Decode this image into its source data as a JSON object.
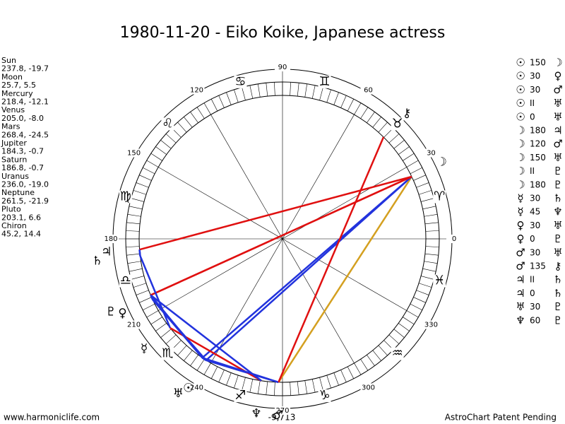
{
  "header": {
    "title": "1980-11-20 - Eiko Koike, Japanese actress"
  },
  "planets": [
    {
      "name": "Sun",
      "glyph": "☉",
      "lon": 237.8,
      "text": "237.8, -19.7"
    },
    {
      "name": "Moon",
      "glyph": "☽",
      "lon": 25.7,
      "text": "25.7, 5.5"
    },
    {
      "name": "Mercury",
      "glyph": "☿",
      "lon": 218.4,
      "text": "218.4, -12.1"
    },
    {
      "name": "Venus",
      "glyph": "♀",
      "lon": 205.0,
      "text": "205.0, -8.0"
    },
    {
      "name": "Mars",
      "glyph": "♂",
      "lon": 268.4,
      "text": "268.4, -24.5"
    },
    {
      "name": "Jupiter",
      "glyph": "♃",
      "lon": 184.3,
      "text": "184.3, -0.7"
    },
    {
      "name": "Saturn",
      "glyph": "♄",
      "lon": 186.8,
      "text": "186.8, -0.7"
    },
    {
      "name": "Uranus",
      "glyph": "♅",
      "lon": 236.0,
      "text": "236.0, -19.0"
    },
    {
      "name": "Neptune",
      "glyph": "♆",
      "lon": 261.5,
      "text": "261.5, -21.9"
    },
    {
      "name": "Pluto",
      "glyph": "♇",
      "lon": 203.1,
      "text": "203.1, 6.6"
    },
    {
      "name": "Chiron",
      "glyph": "⚷",
      "lon": 45.2,
      "text": "45.2, 14.4"
    }
  ],
  "aspects": [
    {
      "from": "☉",
      "aspect": "150",
      "to": "☽",
      "color": "#2233dd"
    },
    {
      "from": "☉",
      "aspect": "30",
      "to": "♀",
      "color": "#2233dd"
    },
    {
      "from": "☉",
      "aspect": "30",
      "to": "♂",
      "color": "#2233dd"
    },
    {
      "from": "☉",
      "aspect": "II",
      "to": "♅",
      "color": "#2233dd"
    },
    {
      "from": "☉",
      "aspect": "0",
      "to": "♅",
      "color": "#2233dd"
    },
    {
      "from": "☽",
      "aspect": "180",
      "to": "♃",
      "color": "#e01010"
    },
    {
      "from": "☽",
      "aspect": "120",
      "to": "♂",
      "color": "#d4a020"
    },
    {
      "from": "☽",
      "aspect": "150",
      "to": "♅",
      "color": "#2233dd"
    },
    {
      "from": "☽",
      "aspect": "II",
      "to": "♇",
      "color": "#e01010"
    },
    {
      "from": "☽",
      "aspect": "180",
      "to": "♇",
      "color": "#e01010"
    },
    {
      "from": "☿",
      "aspect": "30",
      "to": "♄",
      "color": "#2233dd"
    },
    {
      "from": "☿",
      "aspect": "45",
      "to": "♆",
      "color": "#e01010"
    },
    {
      "from": "♀",
      "aspect": "30",
      "to": "♅",
      "color": "#2233dd"
    },
    {
      "from": "♀",
      "aspect": "0",
      "to": "♇",
      "color": "#2233dd"
    },
    {
      "from": "♂",
      "aspect": "30",
      "to": "♅",
      "color": "#2233dd"
    },
    {
      "from": "♂",
      "aspect": "135",
      "to": "⚷",
      "color": "#e01010"
    },
    {
      "from": "♃",
      "aspect": "II",
      "to": "♄",
      "color": "#2233dd"
    },
    {
      "from": "♃",
      "aspect": "0",
      "to": "♄",
      "color": "#2233dd"
    },
    {
      "from": "♅",
      "aspect": "30",
      "to": "♇",
      "color": "#2233dd"
    },
    {
      "from": "♆",
      "aspect": "60",
      "to": "♇",
      "color": "#2233dd"
    }
  ],
  "degree_labels": [
    0,
    30,
    60,
    90,
    120,
    150,
    180,
    210,
    240,
    270,
    300,
    330
  ],
  "signs": [
    "♈",
    "♉",
    "♊",
    "♋",
    "♌",
    "♍",
    "♎",
    "♏",
    "♐",
    "♑",
    "♒",
    "♓"
  ],
  "bottom_label": "-9,713",
  "footer": {
    "left": "www.harmoniclife.com",
    "right": "AstroChart Patent Pending"
  }
}
